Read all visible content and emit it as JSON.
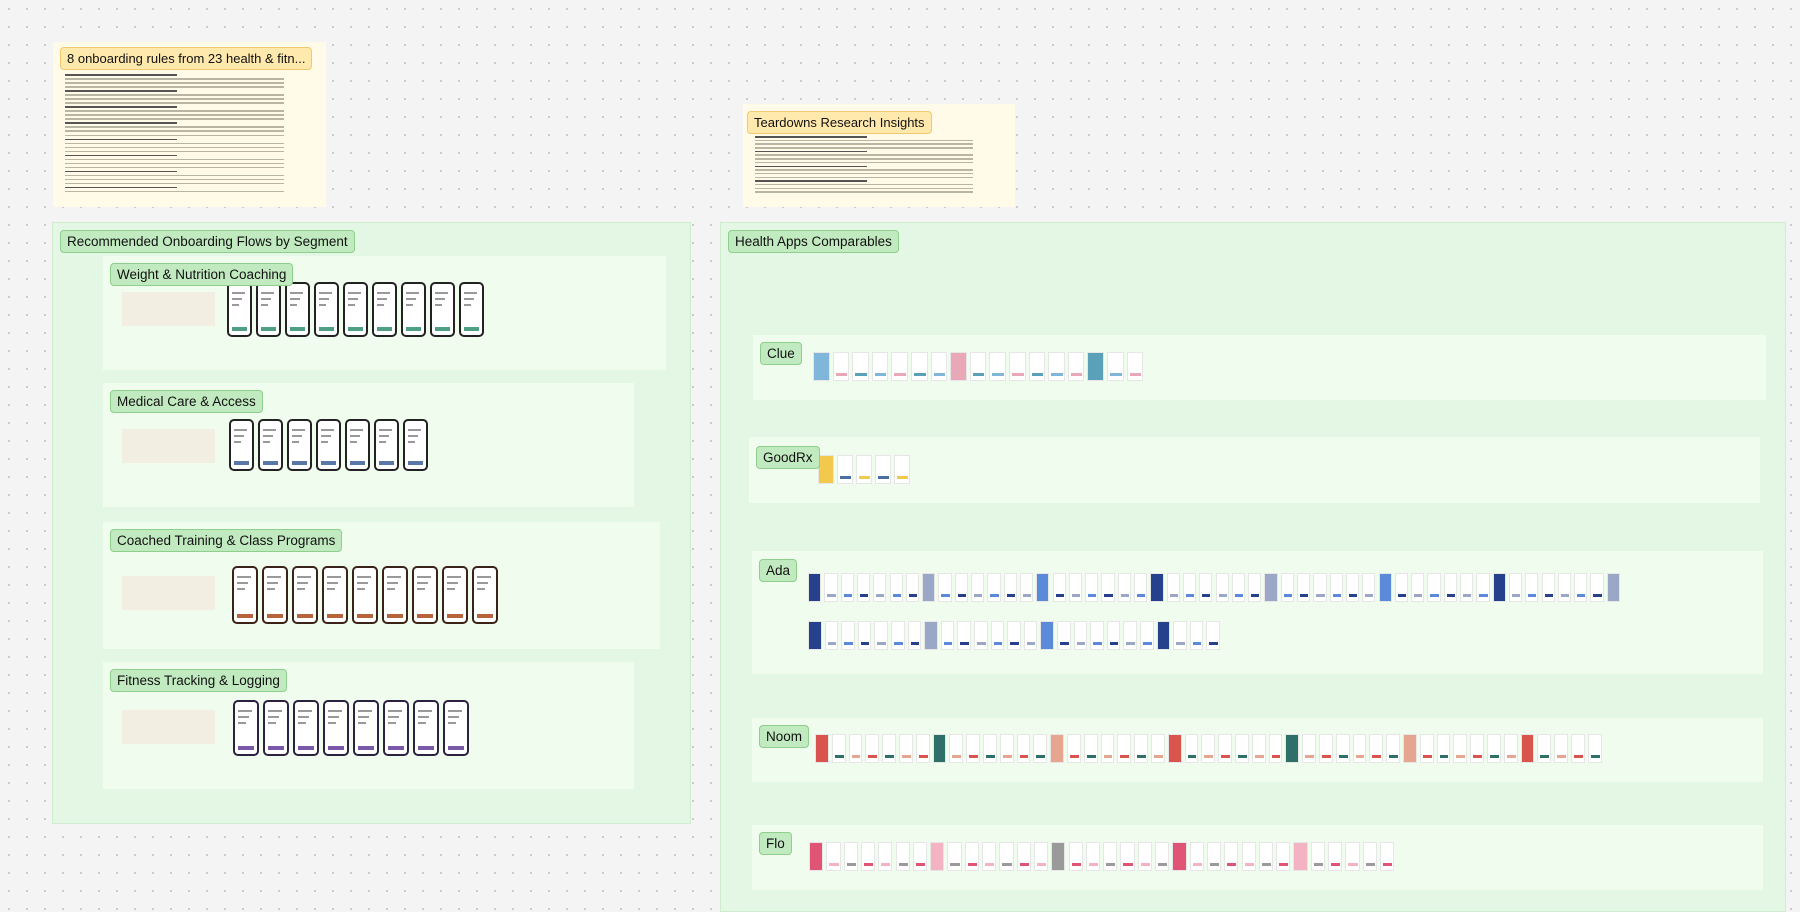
{
  "notes": [
    {
      "title": "8 onboarding rules from 23 health & fitn..."
    },
    {
      "title": "Teardowns Research Insights"
    }
  ],
  "sections": [
    {
      "title": "Recommended Onboarding Flows by Segment",
      "groups": [
        {
          "title": "Weight & Nutrition Coaching"
        },
        {
          "title": "Medical Care & Access"
        },
        {
          "title": "Coached Training & Class Programs"
        },
        {
          "title": "Fitness Tracking & Logging"
        }
      ]
    },
    {
      "title": "Health Apps Comparables",
      "groups": [
        {
          "title": "Clue"
        },
        {
          "title": "GoodRx"
        },
        {
          "title": "Ada"
        },
        {
          "title": "Noom"
        },
        {
          "title": "Flo"
        }
      ]
    }
  ]
}
